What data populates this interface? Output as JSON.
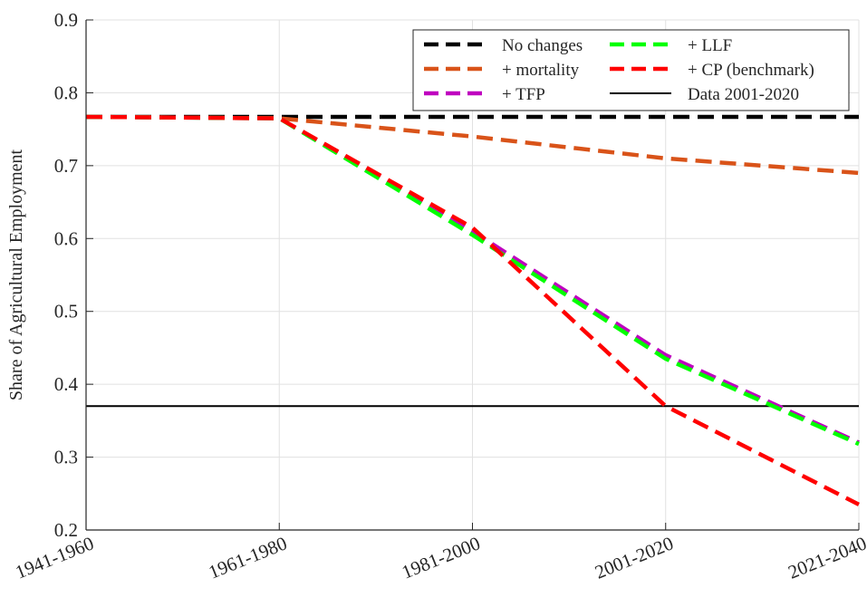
{
  "chart_data": {
    "type": "line",
    "title": "",
    "xlabel": "",
    "ylabel": "Share of Agricultural Employment",
    "categories": [
      "1941-1960",
      "1961-1980",
      "1981-2000",
      "2001-2020",
      "2021-2040"
    ],
    "ylim": [
      0.2,
      0.9
    ],
    "yticks": [
      "0.2",
      "0.3",
      "0.4",
      "0.5",
      "0.6",
      "0.7",
      "0.8",
      "0.9"
    ],
    "grid": true,
    "legend_position": "top-right",
    "series": [
      {
        "name": "No changes",
        "color": "#000000",
        "style": "dashed",
        "values": [
          0.767,
          0.767,
          0.767,
          0.767,
          0.767
        ]
      },
      {
        "name": "+ mortality",
        "color": "#D95319",
        "style": "dashed",
        "values": [
          0.767,
          0.765,
          0.74,
          0.71,
          0.69
        ]
      },
      {
        "name": "+ TFP",
        "color": "#BF00BF",
        "style": "dashed",
        "values": [
          0.767,
          0.765,
          0.61,
          0.44,
          0.32
        ]
      },
      {
        "name": "+ LLF",
        "color": "#00FF00",
        "style": "dashed",
        "values": [
          0.767,
          0.765,
          0.605,
          0.435,
          0.318
        ]
      },
      {
        "name": "+ CP (benchmark)",
        "color": "#FF0000",
        "style": "dashed",
        "values": [
          0.767,
          0.765,
          0.615,
          0.37,
          0.235
        ]
      },
      {
        "name": "Data 2001-2020",
        "color": "#000000",
        "style": "solid",
        "values": [
          0.37,
          0.37,
          0.37,
          0.37,
          0.37
        ]
      }
    ]
  }
}
